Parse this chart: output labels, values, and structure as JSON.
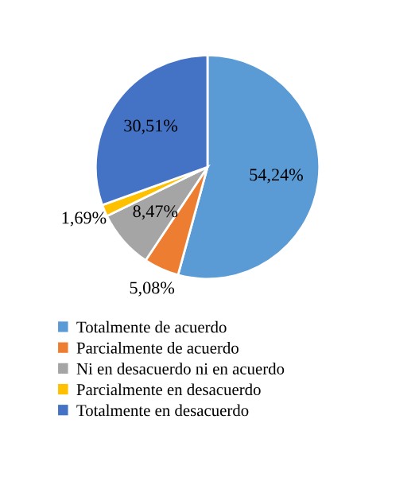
{
  "chart_data": {
    "type": "pie",
    "categories": [
      "Totalmente de acuerdo",
      "Parcialmente de acuerdo",
      "Ni en desacuerdo ni en acuerdo",
      "Parcialmente en desacuerdo",
      "Totalmente en desacuerdo"
    ],
    "values": [
      54.24,
      5.08,
      8.47,
      1.69,
      30.51
    ],
    "value_labels": [
      "54,24%",
      "5,08%",
      "8,47%",
      "1,69%",
      "30,51%"
    ],
    "colors": [
      "#5b9bd5",
      "#ed7d31",
      "#a5a5a5",
      "#ffc000",
      "#4472c4"
    ],
    "legend": "bottom"
  }
}
